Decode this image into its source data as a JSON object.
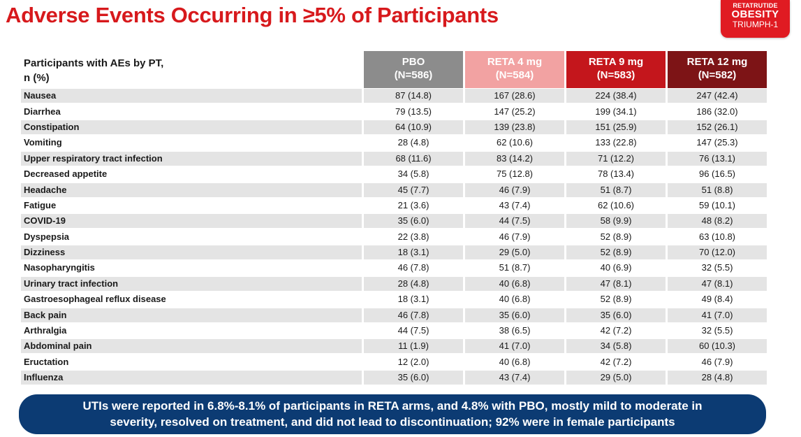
{
  "title": "Adverse Events Occurring in ≥5% of Participants",
  "badge": {
    "line1": "RETATRUTIDE",
    "line2": "OBESITY",
    "line3": "TRIUMPH-1"
  },
  "table": {
    "row_header_line1": "Participants with AEs by PT,",
    "row_header_line2": "n (%)",
    "columns": [
      {
        "name": "PBO",
        "n": "(N=586)",
        "color": "#8c8c8c"
      },
      {
        "name": "RETA 4 mg",
        "n": "(N=584)",
        "color": "#f2a2a2"
      },
      {
        "name": "RETA 9 mg",
        "n": "(N=583)",
        "color": "#c4161c"
      },
      {
        "name": "RETA 12 mg",
        "n": "(N=582)",
        "color": "#7d1416"
      }
    ],
    "rows": [
      {
        "term": "Nausea",
        "values": [
          "87 (14.8)",
          "167 (28.6)",
          "224 (38.4)",
          "247 (42.4)"
        ]
      },
      {
        "term": "Diarrhea",
        "values": [
          "79 (13.5)",
          "147 (25.2)",
          "199 (34.1)",
          "186 (32.0)"
        ]
      },
      {
        "term": "Constipation",
        "values": [
          "64 (10.9)",
          "139 (23.8)",
          "151 (25.9)",
          "152 (26.1)"
        ]
      },
      {
        "term": "Vomiting",
        "values": [
          "28 (4.8)",
          "62 (10.6)",
          "133 (22.8)",
          "147 (25.3)"
        ]
      },
      {
        "term": "Upper respiratory tract infection",
        "values": [
          "68 (11.6)",
          "83 (14.2)",
          "71 (12.2)",
          "76 (13.1)"
        ]
      },
      {
        "term": "Decreased appetite",
        "values": [
          "34 (5.8)",
          "75 (12.8)",
          "78 (13.4)",
          "96 (16.5)"
        ]
      },
      {
        "term": "Headache",
        "values": [
          "45 (7.7)",
          "46 (7.9)",
          "51 (8.7)",
          "51 (8.8)"
        ]
      },
      {
        "term": "Fatigue",
        "values": [
          "21 (3.6)",
          "43 (7.4)",
          "62 (10.6)",
          "59 (10.1)"
        ]
      },
      {
        "term": "COVID-19",
        "values": [
          "35 (6.0)",
          "44 (7.5)",
          "58 (9.9)",
          "48 (8.2)"
        ]
      },
      {
        "term": "Dyspepsia",
        "values": [
          "22 (3.8)",
          "46 (7.9)",
          "52 (8.9)",
          "63 (10.8)"
        ]
      },
      {
        "term": "Dizziness",
        "values": [
          "18 (3.1)",
          "29 (5.0)",
          "52 (8.9)",
          "70 (12.0)"
        ]
      },
      {
        "term": "Nasopharyngitis",
        "values": [
          "46 (7.8)",
          "51 (8.7)",
          "40 (6.9)",
          "32 (5.5)"
        ]
      },
      {
        "term": "Urinary tract infection",
        "values": [
          "28 (4.8)",
          "40 (6.8)",
          "47 (8.1)",
          "47 (8.1)"
        ]
      },
      {
        "term": "Gastroesophageal reflux disease",
        "values": [
          "18 (3.1)",
          "40 (6.8)",
          "52 (8.9)",
          "49 (8.4)"
        ]
      },
      {
        "term": "Back pain",
        "values": [
          "46 (7.8)",
          "35 (6.0)",
          "35 (6.0)",
          "41 (7.0)"
        ]
      },
      {
        "term": "Arthralgia",
        "values": [
          "44 (7.5)",
          "38 (6.5)",
          "42 (7.2)",
          "32 (5.5)"
        ]
      },
      {
        "term": "Abdominal pain",
        "values": [
          "11 (1.9)",
          "41 (7.0)",
          "34 (5.8)",
          "60 (10.3)"
        ]
      },
      {
        "term": "Eructation",
        "values": [
          "12 (2.0)",
          "40 (6.8)",
          "42 (7.2)",
          "46 (7.9)"
        ]
      },
      {
        "term": "Influenza",
        "values": [
          "35 (6.0)",
          "43 (7.4)",
          "29 (5.0)",
          "28 (4.8)"
        ]
      }
    ]
  },
  "callout": {
    "line1": "UTIs were reported in 6.8%-8.1% of participants in RETA arms, and 4.8% with PBO, mostly mild to moderate in",
    "line2": "severity, resolved on treatment, and did not lead to discontinuation; 92% were in female participants"
  }
}
